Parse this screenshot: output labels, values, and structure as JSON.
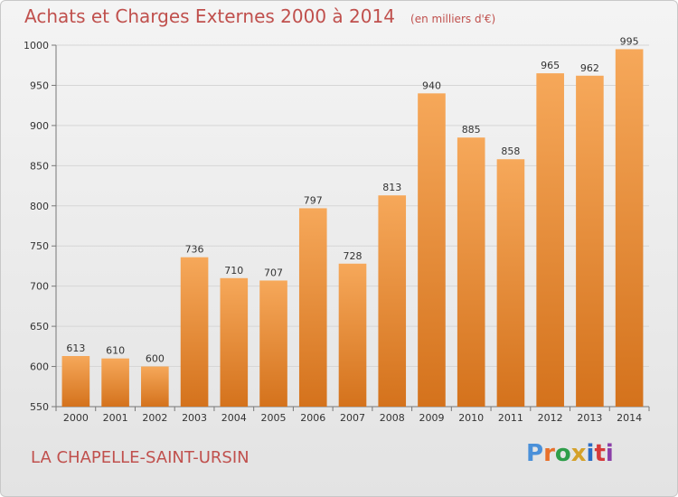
{
  "header": {
    "title": "Achats et Charges Externes 2000 à 2014",
    "unit": "(en milliers d'€)"
  },
  "footer": {
    "location": "LA CHAPELLE-SAINT-URSIN",
    "logo_text": "Proxiti",
    "logo_colors": [
      "#4a90d9",
      "#e8702a",
      "#2e9e4a",
      "#d4a12a",
      "#2b6cc4",
      "#d63a3a",
      "#8b3fa8"
    ]
  },
  "colors": {
    "bar": "#f0913a",
    "bar_light": "#f6a85a",
    "bar_dark": "#d4721c",
    "title": "#c0504d",
    "grid": "#d6d6d6"
  },
  "chart_data": {
    "type": "bar",
    "categories": [
      "2000",
      "2001",
      "2002",
      "2003",
      "2004",
      "2005",
      "2006",
      "2007",
      "2008",
      "2009",
      "2010",
      "2011",
      "2012",
      "2013",
      "2014"
    ],
    "values": [
      613,
      610,
      600,
      736,
      710,
      707,
      797,
      728,
      813,
      940,
      885,
      858,
      965,
      962,
      995
    ],
    "ylim": [
      550,
      1000
    ],
    "yticks": [
      550,
      600,
      650,
      700,
      750,
      800,
      850,
      900,
      950,
      1000
    ],
    "grid": true,
    "title": "Achats et Charges Externes 2000 à 2014",
    "xlabel": "",
    "ylabel": ""
  }
}
